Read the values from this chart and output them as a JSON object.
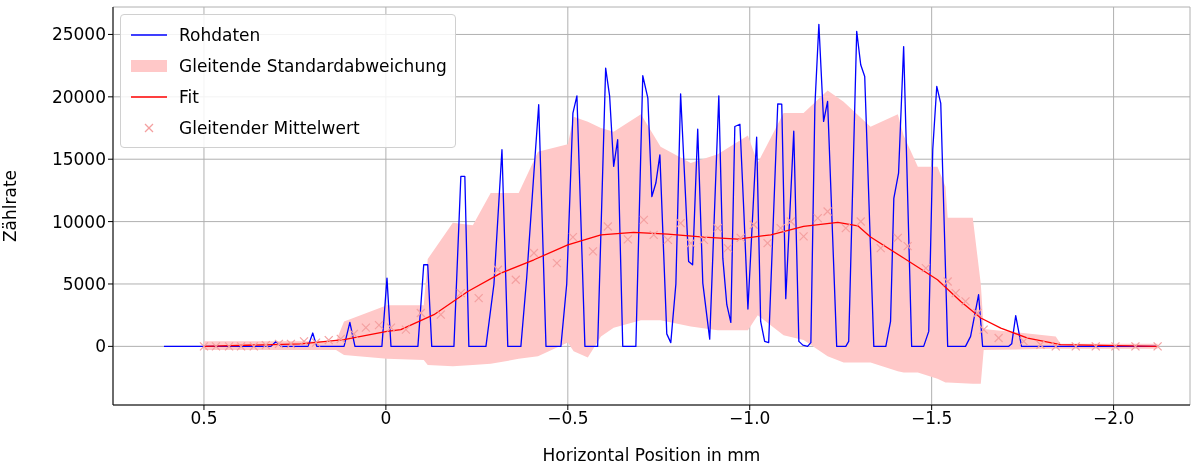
{
  "chart_data": {
    "type": "line",
    "xlabel": "Horizontal Position in mm",
    "ylabel": "Zählrate",
    "xlim": [
      0.75,
      -2.21
    ],
    "ylim": [
      -4700,
      27200
    ],
    "xticks": [
      0.5,
      0,
      {
        "value": -0.5,
        "label": "−0.5"
      },
      {
        "value": -1,
        "label": "−1.0"
      },
      {
        "value": -1.5,
        "label": "−1.5"
      },
      {
        "value": -2,
        "label": "−2.0"
      }
    ],
    "yticks": [
      0,
      5000,
      10000,
      15000,
      20000,
      25000
    ],
    "grid": true,
    "legend": "top left",
    "series": [
      {
        "name": "Rohdaten",
        "type": "line",
        "color": "#0000ff",
        "x": [
          0.61,
          0.316,
          0.302,
          0.288,
          0.214,
          0.201,
          0.19,
          0.115,
          0.099,
          0.085,
          0.011,
          -0.003,
          -0.014,
          -0.088,
          -0.104,
          -0.115,
          -0.126,
          -0.187,
          -0.206,
          -0.217,
          -0.228,
          -0.275,
          -0.297,
          -0.319,
          -0.335,
          -0.371,
          -0.387,
          -0.407,
          -0.42,
          -0.44,
          -0.481,
          -0.497,
          -0.514,
          -0.525,
          -0.547,
          -0.582,
          -0.604,
          -0.615,
          -0.626,
          -0.637,
          -0.651,
          -0.687,
          -0.706,
          -0.72,
          -0.731,
          -0.742,
          -0.753,
          -0.772,
          -0.783,
          -0.797,
          -0.81,
          -0.824,
          -0.832,
          -0.843,
          -0.857,
          -0.871,
          -0.89,
          -0.915,
          -0.926,
          -0.937,
          -0.948,
          -0.959,
          -0.973,
          -0.984,
          -0.995,
          -1.019,
          -1.03,
          -1.041,
          -1.052,
          -1.077,
          -1.088,
          -1.099,
          -1.121,
          -1.135,
          -1.146,
          -1.159,
          -1.168,
          -1.179,
          -1.19,
          -1.203,
          -1.214,
          -1.239,
          -1.264,
          -1.272,
          -1.294,
          -1.305,
          -1.316,
          -1.341,
          -1.374,
          -1.387,
          -1.396,
          -1.409,
          -1.423,
          -1.445,
          -1.478,
          -1.492,
          -1.503,
          -1.514,
          -1.525,
          -1.544,
          -1.593,
          -1.607,
          -1.629,
          -1.64,
          -1.712,
          -1.72,
          -1.731,
          -1.747,
          -2.121
        ],
        "values": [
          0,
          0,
          400,
          0,
          0,
          1070,
          0,
          0,
          1920,
          0,
          0,
          5470,
          0,
          0,
          6540,
          6540,
          0,
          0,
          13620,
          13620,
          0,
          0,
          5000,
          15760,
          0,
          0,
          5500,
          14000,
          19370,
          0,
          0,
          5000,
          18690,
          20080,
          0,
          0,
          22300,
          20030,
          14430,
          16560,
          0,
          0,
          21690,
          19890,
          12000,
          13090,
          15350,
          1000,
          300,
          5000,
          20240,
          11750,
          6800,
          6540,
          17410,
          5070,
          580,
          20080,
          7070,
          3340,
          1920,
          17620,
          17800,
          10670,
          2990,
          16760,
          2000,
          400,
          300,
          19440,
          19410,
          3820,
          17240,
          400,
          100,
          0,
          300,
          19230,
          25810,
          18030,
          19630,
          0,
          0,
          400,
          25250,
          22570,
          21630,
          0,
          0,
          2000,
          11860,
          13880,
          24030,
          0,
          0,
          1200,
          15780,
          20830,
          19470,
          0,
          0,
          800,
          4140,
          0,
          0,
          200,
          2460,
          0,
          0
        ]
      },
      {
        "name": "Gleitende Standardabweichung",
        "type": "line",
        "color": "#ffc8c8",
        "x": [
          0.5,
          0.137,
          0.115,
          -0.003,
          -0.104,
          -0.115,
          -0.184,
          -0.239,
          -0.288,
          -0.365,
          -0.418,
          -0.5,
          -0.516,
          -0.555,
          -0.591,
          -0.626,
          -0.701,
          -0.755,
          -0.838,
          -0.912,
          -0.995,
          -1.022,
          -1.093,
          -1.148,
          -1.214,
          -1.258,
          -1.332,
          -1.407,
          -1.423,
          -1.462,
          -1.516,
          -1.538,
          -1.544,
          -1.613,
          -1.635,
          -1.643,
          -1.841,
          -1.854,
          -2.121
        ],
        "values": [
          null,
          null,
          null,
          null,
          null,
          null,
          null,
          null,
          null,
          null,
          null,
          null,
          null,
          null,
          null,
          null,
          null,
          null,
          null,
          null,
          null,
          null,
          null,
          null,
          null,
          null,
          null,
          null,
          null,
          null,
          null,
          null,
          null,
          null,
          null,
          null,
          null,
          null,
          null
        ],
        "lower": [
          -300,
          -300,
          -700,
          -1000,
          -1100,
          -1500,
          -1600,
          -1500,
          -1400,
          -1000,
          -800,
          300,
          -400,
          -900,
          800,
          1500,
          2100,
          2100,
          1600,
          1300,
          1300,
          2500,
          900,
          500,
          -800,
          -1300,
          -1300,
          -2000,
          -2100,
          -2100,
          -2600,
          -2900,
          -2900,
          -3000,
          -3000,
          -300,
          -200,
          -200,
          -200
        ],
        "upper": [
          400,
          400,
          2000,
          3300,
          3300,
          7000,
          9900,
          9700,
          12300,
          12300,
          15600,
          16200,
          18400,
          18000,
          17500,
          17200,
          18600,
          16000,
          14700,
          15400,
          16900,
          14700,
          18700,
          18700,
          20500,
          19600,
          17600,
          18600,
          16900,
          14400,
          14400,
          12800,
          10300,
          10300,
          5000,
          1400,
          800,
          200,
          200
        ]
      },
      {
        "name": "Fit",
        "type": "line",
        "color": "#ff0000",
        "x": [
          0.5,
          0.234,
          0.115,
          -0.003,
          -0.041,
          -0.132,
          -0.225,
          -0.316,
          -0.407,
          -0.5,
          -0.591,
          -0.681,
          -0.775,
          -0.874,
          -0.967,
          -1.058,
          -1.148,
          -1.242,
          -1.297,
          -1.332,
          -1.423,
          -1.516,
          -1.58,
          -1.635,
          -1.69,
          -1.764,
          -1.854,
          -2.121
        ],
        "values": [
          0,
          200,
          540,
          1200,
          1340,
          2540,
          4400,
          5870,
          6940,
          8140,
          8940,
          9130,
          9000,
          8760,
          8600,
          8940,
          9610,
          9930,
          9660,
          8760,
          7080,
          5340,
          3600,
          2270,
          1460,
          660,
          140,
          0
        ]
      },
      {
        "name": "Gleitender Mittelwert",
        "type": "scatter",
        "color": "#f4a0a0",
        "marker": "cross",
        "x": [
          0.5,
          0.467,
          0.431,
          0.398,
          0.363,
          0.33,
          0.294,
          0.261,
          0.225,
          0.192,
          0.157,
          0.124,
          0.088,
          0.055,
          0.019,
          -0.014,
          -0.055,
          -0.096,
          -0.151,
          -0.206,
          -0.255,
          -0.308,
          -0.357,
          -0.407,
          -0.47,
          -0.514,
          -0.569,
          -0.61,
          -0.665,
          -0.709,
          -0.736,
          -0.775,
          -0.81,
          -0.838,
          -0.874,
          -0.912,
          -0.94,
          -0.975,
          -1.011,
          -1.049,
          -1.085,
          -1.113,
          -1.148,
          -1.187,
          -1.214,
          -1.264,
          -1.305,
          -1.36,
          -1.407,
          -1.434,
          -1.484,
          -1.544,
          -1.566,
          -1.593,
          -1.626,
          -1.643,
          -1.684,
          -1.753,
          -1.799,
          -1.841,
          -1.896,
          -1.951,
          -2.005,
          -2.06,
          -2.121
        ],
        "values": [
          0,
          0,
          0,
          0,
          0,
          100,
          200,
          200,
          400,
          300,
          500,
          600,
          1000,
          1500,
          1700,
          1500,
          1340,
          2670,
          2540,
          4270,
          3870,
          6140,
          5340,
          7480,
          6670,
          8760,
          7610,
          9610,
          8580,
          10140,
          8940,
          8540,
          9880,
          8270,
          8540,
          9480,
          7870,
          8700,
          9750,
          8270,
          9480,
          10010,
          8810,
          10280,
          10810,
          9480,
          10010,
          7870,
          8700,
          8040,
          6270,
          5200,
          4270,
          3600,
          2670,
          1340,
          670,
          400,
          130,
          0,
          0,
          0,
          0,
          0,
          0
        ]
      }
    ]
  }
}
